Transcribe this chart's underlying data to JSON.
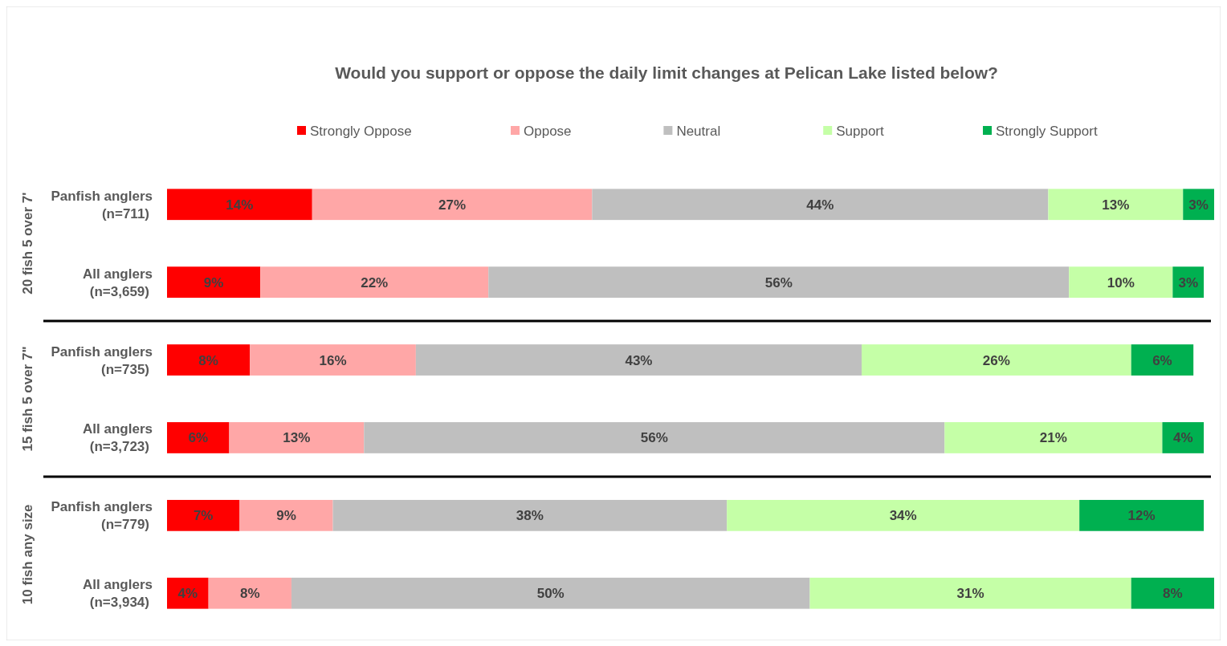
{
  "chart_data": {
    "type": "bar",
    "orientation": "horizontal",
    "stacked": true,
    "title": "Would you support or oppose the daily limit changes at Pelican Lake listed below?",
    "categories": [
      "Panfish anglers\n(n=711)",
      "All anglers\n(n=3,659)",
      "Panfish anglers\n(n=735)",
      "All anglers\n(n=3,723)",
      "Panfish anglers\n(n=779)",
      "All anglers\n(n=3,934)"
    ],
    "series": [
      {
        "name": "Strongly Oppose",
        "color": "#ff0000",
        "values": [
          14,
          9,
          8,
          6,
          7,
          4
        ],
        "value_labels": [
          "14%",
          "9%",
          "8%",
          "6%",
          "7%",
          "4%"
        ]
      },
      {
        "name": "Oppose",
        "color": "#ffa7a7",
        "values": [
          27,
          22,
          16,
          13,
          9,
          8
        ],
        "value_labels": [
          "27%",
          "22%",
          "16%",
          "13%",
          "9%",
          "8%"
        ]
      },
      {
        "name": "Neutral",
        "color": "#bfbfbf",
        "values": [
          44,
          56,
          43,
          56,
          38,
          50
        ],
        "value_labels": [
          "44%",
          "56%",
          "43%",
          "56%",
          "38%",
          "50%"
        ]
      },
      {
        "name": "Support",
        "color": "#c5ffa7",
        "values": [
          13,
          10,
          26,
          21,
          34,
          31
        ],
        "value_labels": [
          "13%",
          "10%",
          "26%",
          "21%",
          "34%",
          "31%"
        ]
      },
      {
        "name": "Strongly Support",
        "color": "#00b050",
        "values": [
          3,
          3,
          6,
          4,
          12,
          8
        ],
        "value_labels": [
          "3%",
          "3%",
          "6%",
          "4%",
          "12%",
          "8%"
        ]
      }
    ],
    "annotations": [
      "20 fish 5 over 7'",
      "15 fish 5 over 7\"",
      "10 fish any size"
    ],
    "legend": "top"
  }
}
